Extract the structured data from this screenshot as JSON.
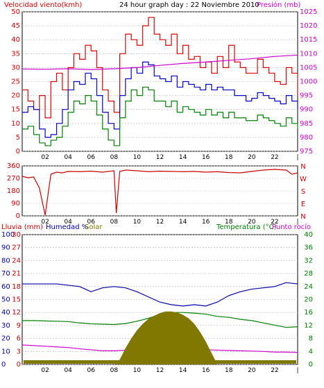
{
  "title": "24 hour graph day : 22 Noviembre 2010",
  "colors": {
    "wind_avg": "#0000cc",
    "wind_gust": "#dd0000",
    "wind_low": "#008000",
    "pressure": "#cc00cc",
    "direction": "#cc0000",
    "humidity": "#0000aa",
    "temperature": "#008000",
    "dewpoint": "#cc00cc",
    "solar": "#807800",
    "rain": "#cc0000",
    "axis": "#000000"
  },
  "x_ticks": [
    "02",
    "04",
    "06",
    "08",
    "10",
    "12",
    "14",
    "16",
    "18",
    "20",
    "22",
    "|"
  ],
  "chart_data": [
    {
      "type": "line",
      "title": "24 hour graph day : 22 Noviembre 2010",
      "left_label": "Velocidad viento(kmh)",
      "right_label": "Presión (mb)",
      "left_ticks": [
        "0",
        "5",
        "10",
        "15",
        "20",
        "25",
        "30",
        "35",
        "40",
        "45",
        "50"
      ],
      "right_ticks": [
        "975",
        "980",
        "985",
        "990",
        "995",
        "1000",
        "1005",
        "1010",
        "1015",
        "1020",
        "1025"
      ],
      "ylim": [
        0,
        50
      ],
      "y2lim": [
        975,
        1025
      ],
      "xlim": [
        0,
        24
      ],
      "series": [
        {
          "key": "gust",
          "color": "#dd0000",
          "x": [
            0,
            0.5,
            1,
            1.5,
            2,
            2.5,
            3,
            3.5,
            4,
            4.5,
            5,
            5.5,
            6,
            6.5,
            7,
            7.5,
            8,
            8.5,
            9,
            9.5,
            10,
            10.5,
            11,
            11.5,
            12,
            12.5,
            13,
            13.5,
            14,
            14.5,
            15,
            15.5,
            16,
            16.5,
            17,
            17.5,
            18,
            18.5,
            19,
            19.5,
            20,
            20.5,
            21,
            21.5,
            22,
            22.5,
            23,
            23.5,
            24
          ],
          "y": [
            22,
            18,
            15,
            20,
            12,
            25,
            28,
            22,
            30,
            35,
            33,
            38,
            36,
            30,
            22,
            18,
            14,
            35,
            42,
            40,
            38,
            45,
            48,
            42,
            40,
            38,
            42,
            35,
            38,
            33,
            34,
            30,
            32,
            28,
            34,
            30,
            38,
            32,
            30,
            28,
            28,
            33,
            30,
            28,
            25,
            24,
            30,
            28,
            20
          ]
        },
        {
          "key": "avg",
          "color": "#0000cc",
          "x": [
            0,
            0.5,
            1,
            1.5,
            2,
            2.5,
            3,
            3.5,
            4,
            4.5,
            5,
            5.5,
            6,
            6.5,
            7,
            7.5,
            8,
            8.5,
            9,
            9.5,
            10,
            10.5,
            11,
            11.5,
            12,
            12.5,
            13,
            13.5,
            14,
            14.5,
            15,
            15.5,
            16,
            16.5,
            17,
            17.5,
            18,
            18.5,
            19,
            19.5,
            20,
            20.5,
            21,
            21.5,
            22,
            22.5,
            23,
            23.5,
            24
          ],
          "y": [
            14,
            16,
            15,
            8,
            5,
            6,
            10,
            15,
            22,
            25,
            24,
            28,
            26,
            20,
            14,
            10,
            8,
            20,
            26,
            30,
            28,
            32,
            31,
            27,
            26,
            25,
            27,
            23,
            25,
            24,
            23,
            22,
            24,
            22,
            23,
            22,
            22,
            20,
            20,
            18,
            19,
            21,
            20,
            19,
            18,
            17,
            20,
            18,
            15
          ]
        },
        {
          "key": "low",
          "color": "#008000",
          "x": [
            0,
            0.5,
            1,
            1.5,
            2,
            2.5,
            3,
            3.5,
            4,
            4.5,
            5,
            5.5,
            6,
            6.5,
            7,
            7.5,
            8,
            8.5,
            9,
            9.5,
            10,
            10.5,
            11,
            11.5,
            12,
            12.5,
            13,
            13.5,
            14,
            14.5,
            15,
            15.5,
            16,
            16.5,
            17,
            17.5,
            18,
            18.5,
            19,
            19.5,
            20,
            20.5,
            21,
            21.5,
            22,
            22.5,
            23,
            23.5,
            24
          ],
          "y": [
            8,
            9,
            6,
            3,
            2,
            4,
            5,
            9,
            14,
            18,
            17,
            20,
            18,
            13,
            8,
            4,
            2,
            12,
            18,
            22,
            20,
            23,
            22,
            18,
            18,
            16,
            18,
            14,
            16,
            15,
            14,
            13,
            15,
            13,
            14,
            12,
            14,
            12,
            12,
            11,
            11,
            13,
            12,
            11,
            10,
            9,
            12,
            10,
            8
          ]
        },
        {
          "key": "pressure",
          "axis": "right",
          "color": "#cc00cc",
          "x": [
            0,
            2,
            4,
            6,
            8,
            10,
            12,
            14,
            16,
            18,
            20,
            22,
            24
          ],
          "y": [
            1004.5,
            1004.4,
            1004.6,
            1004.3,
            1004.6,
            1005,
            1005.8,
            1006.5,
            1007,
            1007.6,
            1008.2,
            1009,
            1009.5
          ]
        }
      ]
    },
    {
      "type": "scatter",
      "title": "",
      "left_ticks": [
        "0",
        "90",
        "180",
        "270",
        "360"
      ],
      "right_labels": [
        "N",
        "W",
        "S",
        "E",
        "N"
      ],
      "ylim": [
        0,
        360
      ],
      "xlim": [
        0,
        24
      ],
      "series": [
        {
          "key": "direction",
          "color": "#cc0000",
          "x": [
            0,
            0.5,
            1,
            1.5,
            2,
            2.5,
            3,
            3.5,
            4,
            5,
            6,
            7,
            8,
            8.2,
            8.5,
            9,
            10,
            11,
            12,
            13,
            14,
            15,
            16,
            17,
            18,
            19,
            20,
            21,
            22,
            23,
            23.5,
            24
          ],
          "y": [
            285,
            275,
            280,
            200,
            5,
            300,
            315,
            310,
            320,
            318,
            322,
            315,
            325,
            20,
            320,
            330,
            325,
            318,
            322,
            320,
            318,
            320,
            315,
            318,
            312,
            310,
            320,
            330,
            335,
            330,
            300,
            310
          ]
        }
      ]
    },
    {
      "type": "line",
      "title": "",
      "labels": {
        "rain": "Lluvia (mm)",
        "humidity": "Humedad %",
        "solar": "Solar",
        "temperature": "Temperatura (°C)",
        "dewpoint": "Punto rocío"
      },
      "humidity_ticks": [
        "0",
        "10",
        "20",
        "30",
        "40",
        "50",
        "60",
        "70",
        "80",
        "90",
        "100"
      ],
      "rain_ticks": [
        "0",
        "3",
        "6",
        "9",
        "12",
        "15",
        "18",
        "21",
        "24",
        "27",
        "30"
      ],
      "temp_ticks": [
        "0",
        "4",
        "8",
        "12",
        "16",
        "20",
        "24",
        "28",
        "32",
        "36",
        "40"
      ],
      "temp_lim": [
        0,
        40
      ],
      "humidity_lim": [
        0,
        100
      ],
      "xlim": [
        0,
        24
      ],
      "series": [
        {
          "key": "humidity",
          "color": "#0000aa",
          "x": [
            0,
            1,
            2,
            3,
            4,
            5,
            6,
            7,
            8,
            9,
            10,
            11,
            12,
            13,
            14,
            15,
            16,
            17,
            18,
            19,
            20,
            21,
            22,
            23,
            24
          ],
          "y": [
            62,
            62,
            62,
            62,
            61,
            60,
            56,
            59,
            60,
            59,
            56,
            52,
            48,
            46,
            45,
            46,
            45,
            48,
            53,
            56,
            58,
            59,
            60,
            63,
            62
          ]
        },
        {
          "key": "temperature",
          "color": "#008000",
          "axis": "temp",
          "x": [
            0,
            1,
            2,
            3,
            4,
            5,
            6,
            7,
            8,
            9,
            10,
            11,
            12,
            13,
            14,
            15,
            16,
            17,
            18,
            19,
            20,
            21,
            22,
            23,
            24
          ],
          "y": [
            13.5,
            13.5,
            13.4,
            13.3,
            13.2,
            12.8,
            12.5,
            12.4,
            12.3,
            12.6,
            13.3,
            14.2,
            15.4,
            16,
            16,
            15.8,
            15.5,
            14.8,
            14.5,
            13.9,
            13.5,
            12.8,
            12.1,
            11.4,
            11.6
          ]
        },
        {
          "key": "dewpoint",
          "color": "#cc00cc",
          "axis": "temp",
          "x": [
            0,
            1,
            2,
            3,
            4,
            5,
            6,
            7,
            8,
            9,
            10,
            11,
            12,
            13,
            14,
            15,
            16,
            17,
            18,
            19,
            20,
            21,
            22,
            23,
            24
          ],
          "y": [
            6,
            5.8,
            5.6,
            5.4,
            5.2,
            4.8,
            4.5,
            4.2,
            4.2,
            4.4,
            4.2,
            4,
            4,
            4.3,
            4.2,
            4.4,
            4.5,
            4.4,
            4.3,
            4.2,
            4.1,
            4,
            3.8,
            3.8,
            3.7
          ]
        },
        {
          "key": "solar",
          "color": "#807800",
          "fill": true,
          "axis": "temp",
          "x": [
            8,
            8.5,
            9,
            9.5,
            10,
            10.5,
            11,
            11.5,
            12,
            12.5,
            13,
            13.5,
            14,
            14.5,
            15,
            15.5,
            16,
            16.5,
            17
          ],
          "y": [
            0,
            1.5,
            5,
            8,
            10.5,
            12.5,
            14,
            15,
            15.8,
            16.3,
            16.3,
            16,
            15.3,
            14.2,
            12.5,
            10,
            7,
            3.5,
            0
          ]
        },
        {
          "key": "rain",
          "color": "#cc0000",
          "axis": "temp",
          "x": [
            0,
            24
          ],
          "y": [
            0,
            0
          ]
        }
      ]
    }
  ]
}
